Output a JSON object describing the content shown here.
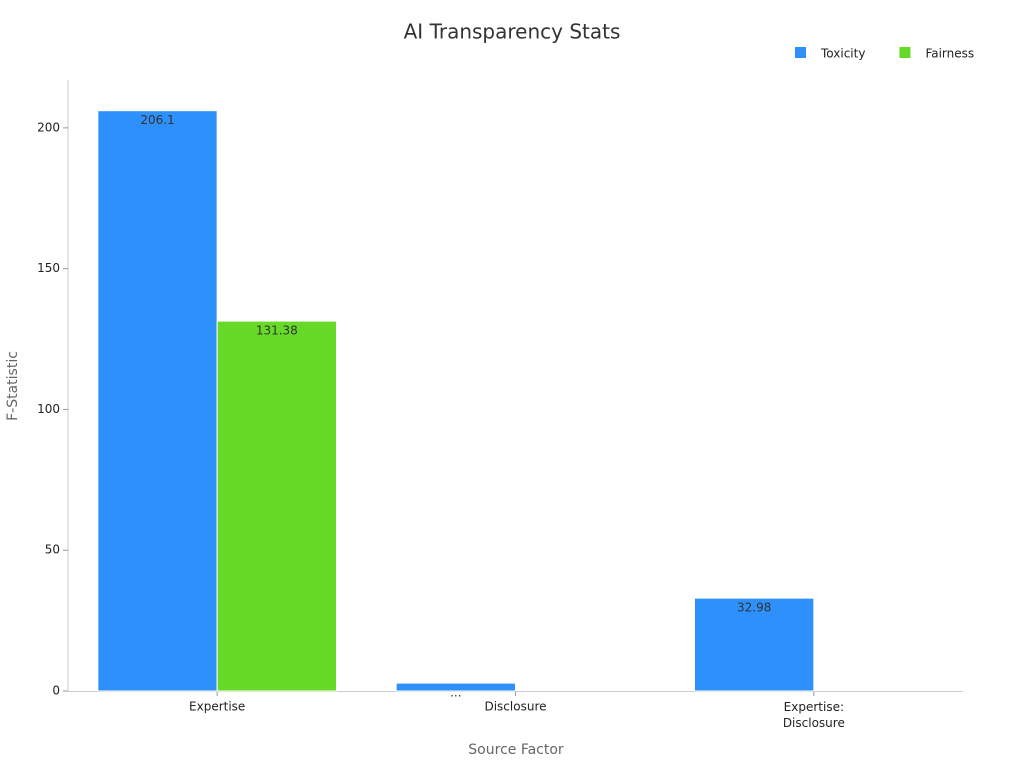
{
  "chart_data": {
    "type": "bar",
    "title": "AI Transparency Stats",
    "x_label": "Source Factor",
    "y_label": "F-Statistic",
    "categories": [
      "Expertise",
      "Disclosure",
      "Expertise:\nDisclosure"
    ],
    "series": [
      {
        "name": "Toxicity",
        "color": "#2e90fa",
        "values": [
          206.1,
          2.8,
          32.98
        ],
        "value_labels": [
          "206.1",
          "...",
          "32.98"
        ]
      },
      {
        "name": "Fairness",
        "color": "#66da26",
        "values": [
          131.38,
          null,
          null
        ]
      }
    ],
    "ylim": [
      0,
      217
    ],
    "yticks": [
      0,
      50,
      100,
      150,
      200
    ],
    "legend": "top-right"
  }
}
